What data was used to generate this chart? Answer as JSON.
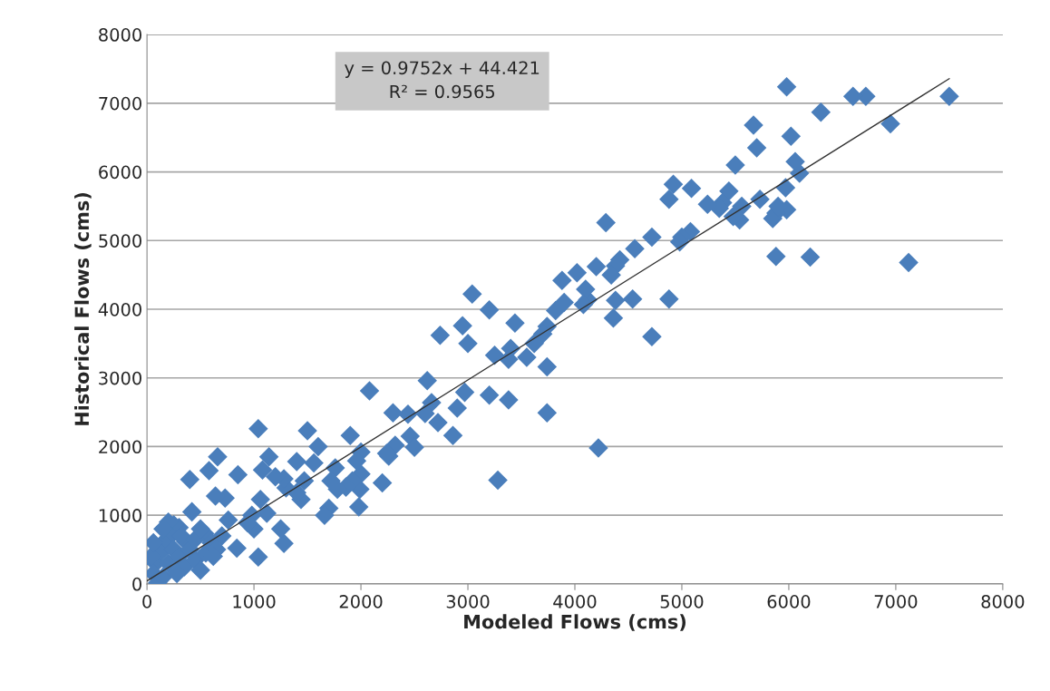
{
  "chart_data": {
    "type": "scatter",
    "xlabel": "Modeled Flows (cms)",
    "ylabel": "Historical Flows (cms)",
    "xlim": [
      0,
      8000
    ],
    "ylim": [
      0,
      8000
    ],
    "xticks": [
      0,
      1000,
      2000,
      3000,
      4000,
      5000,
      6000,
      7000,
      8000
    ],
    "yticks": [
      0,
      1000,
      2000,
      3000,
      4000,
      5000,
      6000,
      7000,
      8000
    ],
    "grid": "y",
    "legend": false,
    "annotations": [
      "y = 0.9752x + 44.421\nR² = 0.9565"
    ],
    "series": [
      {
        "color": "#4a7ebb",
        "marker": "diamond",
        "x": [
          7500,
          6950,
          7120,
          6720,
          6600,
          6300,
          5980,
          6020,
          6060,
          6100,
          6200,
          5880,
          5970,
          5980,
          5850,
          5880,
          5900,
          5700,
          5670,
          5730,
          5560,
          5540,
          5500,
          5480,
          5440,
          5380,
          5350,
          5240,
          5090,
          5080,
          5000,
          4980,
          4920,
          4880,
          4880,
          4720,
          4720,
          4560,
          4540,
          4420,
          4380,
          4380,
          4360,
          4340,
          4290,
          4200,
          4120,
          4100,
          4080,
          4020,
          3900,
          3880,
          3820,
          3740,
          3700,
          3740,
          3740,
          3620,
          3550,
          3440,
          3400,
          3380,
          3380,
          3280,
          4220,
          3250,
          3200,
          3200,
          3040,
          3000,
          2970,
          2950,
          2900,
          2860,
          2740,
          2720,
          2660,
          2620,
          2600,
          2440,
          2460,
          2500,
          2320,
          2300,
          2260,
          2200,
          2240,
          2080,
          2000,
          2000,
          1990,
          1980,
          1960,
          1920,
          1900,
          1860,
          1780,
          1760,
          1720,
          1700,
          1660,
          1600,
          1560,
          1500,
          1470,
          1440,
          1400,
          1400,
          1300,
          1280,
          1280,
          1250,
          1200,
          1140,
          1120,
          1080,
          1060,
          1040,
          1040,
          1000,
          980,
          940,
          850,
          840,
          760,
          730,
          660,
          640,
          580,
          540,
          400,
          420,
          360,
          300,
          250,
          200,
          220,
          150,
          120,
          80,
          60,
          100,
          150,
          200,
          250,
          300,
          350,
          400,
          450,
          500,
          550,
          600,
          650,
          700,
          280,
          40,
          60,
          320,
          450,
          500,
          620,
          150
        ],
        "values": [
          7100,
          6700,
          4680,
          7100,
          7100,
          6870,
          7240,
          6520,
          6150,
          5980,
          4760,
          4770,
          5770,
          5450,
          5320,
          5400,
          5500,
          6350,
          6680,
          5600,
          5500,
          5300,
          6100,
          5350,
          5720,
          5550,
          5470,
          5530,
          5760,
          5130,
          5050,
          4980,
          5820,
          5600,
          4150,
          5050,
          3600,
          4880,
          4150,
          4720,
          4630,
          4130,
          3870,
          4500,
          5260,
          4620,
          4140,
          4290,
          4070,
          4530,
          4100,
          4420,
          3980,
          3750,
          3640,
          3160,
          2490,
          3500,
          3300,
          3800,
          3430,
          3270,
          2680,
          1510,
          1980,
          3330,
          3990,
          2750,
          4220,
          3500,
          2790,
          3760,
          2560,
          2160,
          3620,
          2350,
          2640,
          2960,
          2480,
          2470,
          2150,
          1990,
          2020,
          2490,
          1860,
          1470,
          1900,
          2810,
          1920,
          1600,
          1380,
          1120,
          1790,
          1500,
          2160,
          1410,
          1380,
          1690,
          1500,
          1100,
          1000,
          2000,
          1760,
          2230,
          1500,
          1230,
          1330,
          1780,
          1400,
          1530,
          590,
          800,
          1560,
          1850,
          1030,
          1660,
          1230,
          2260,
          390,
          800,
          1000,
          890,
          1590,
          520,
          930,
          1250,
          1850,
          1280,
          1650,
          730,
          1520,
          1050,
          620,
          820,
          860,
          900,
          700,
          600,
          450,
          300,
          150,
          20,
          100,
          300,
          500,
          400,
          250,
          500,
          350,
          200,
          450,
          600,
          500,
          700,
          150,
          400,
          600,
          700,
          650,
          800,
          400,
          800
        ]
      },
      {
        "type": "line",
        "color": "#333333",
        "marker": "none",
        "x": [
          0,
          7500
        ],
        "values": [
          44,
          7358
        ]
      }
    ]
  }
}
